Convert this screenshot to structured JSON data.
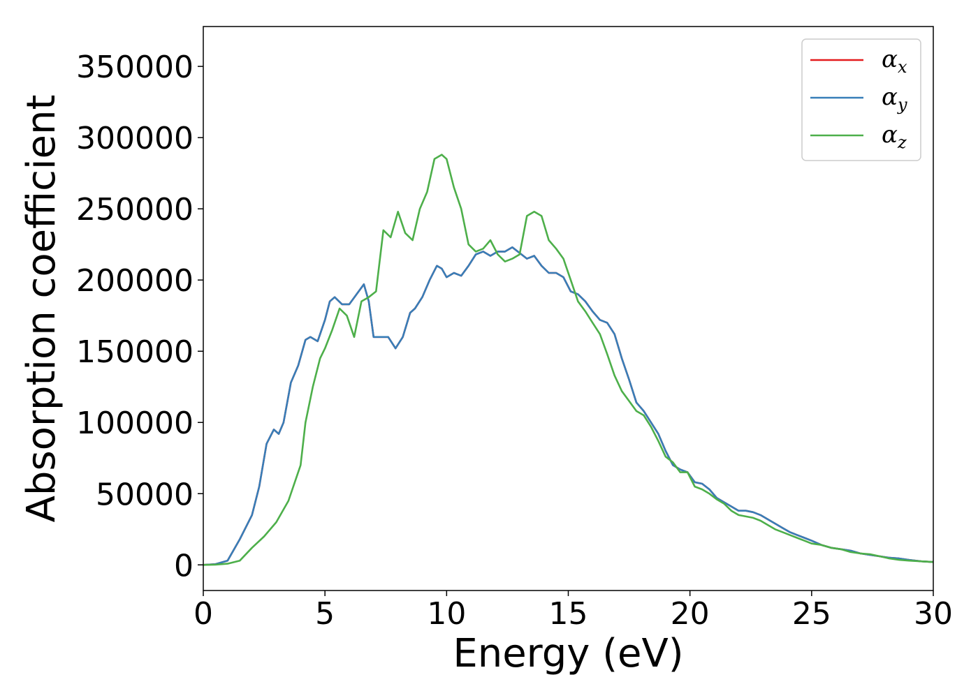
{
  "chart_data": {
    "type": "line",
    "title": "",
    "xlabel": "Energy (eV)",
    "ylabel": "Absorption coefficient",
    "xlim": [
      0,
      30
    ],
    "ylim": [
      -18000,
      378000
    ],
    "xticks": [
      0,
      5,
      10,
      15,
      20,
      25,
      30
    ],
    "yticks": [
      0,
      50000,
      100000,
      150000,
      200000,
      250000,
      300000,
      350000
    ],
    "grid": false,
    "legend_position": "top-right",
    "series": [
      {
        "name": "α",
        "subscript": "x",
        "color": "#e41a1c",
        "x": [
          0,
          0.5,
          1.0,
          1.5,
          2.0,
          2.3,
          2.6,
          2.9,
          3.1,
          3.3,
          3.6,
          3.9,
          4.2,
          4.4,
          4.7,
          5.0,
          5.2,
          5.4,
          5.7,
          6.0,
          6.3,
          6.6,
          6.8,
          7.0,
          7.3,
          7.6,
          7.9,
          8.2,
          8.5,
          8.7,
          9.0,
          9.3,
          9.6,
          9.8,
          10.0,
          10.3,
          10.6,
          10.9,
          11.2,
          11.5,
          11.8,
          12.1,
          12.4,
          12.7,
          13.0,
          13.3,
          13.6,
          13.9,
          14.2,
          14.5,
          14.8,
          15.1,
          15.4,
          15.7,
          16.0,
          16.3,
          16.6,
          16.9,
          17.2,
          17.5,
          17.8,
          18.1,
          18.4,
          18.7,
          19.0,
          19.3,
          19.6,
          19.9,
          20.2,
          20.5,
          20.8,
          21.1,
          21.4,
          21.7,
          22.0,
          22.3,
          22.6,
          22.9,
          23.2,
          23.5,
          23.8,
          24.1,
          24.4,
          24.7,
          25.0,
          25.4,
          25.8,
          26.2,
          26.6,
          27.0,
          27.4,
          27.8,
          28.2,
          28.6,
          29.0,
          29.5,
          30.0
        ],
        "y": [
          0,
          500,
          3000,
          18000,
          35000,
          55000,
          85000,
          95000,
          92000,
          100000,
          128000,
          140000,
          158000,
          160000,
          157000,
          172000,
          185000,
          188000,
          183000,
          183000,
          190000,
          197000,
          185000,
          160000,
          160000,
          160000,
          152000,
          160000,
          177000,
          180000,
          188000,
          200000,
          210000,
          208000,
          202000,
          205000,
          203000,
          210000,
          218000,
          220000,
          217000,
          220000,
          220000,
          223000,
          219000,
          215000,
          217000,
          210000,
          205000,
          205000,
          202000,
          192000,
          190000,
          185000,
          178000,
          172000,
          170000,
          162000,
          145000,
          130000,
          114000,
          108000,
          100000,
          92000,
          80000,
          70000,
          67000,
          65000,
          58000,
          57000,
          53000,
          47000,
          44000,
          41000,
          38000,
          38000,
          37000,
          35000,
          32000,
          29000,
          26000,
          23000,
          21000,
          19000,
          17000,
          14000,
          12000,
          11000,
          10000,
          8000,
          7000,
          6000,
          5000,
          4500,
          3500,
          2500,
          2000
        ]
      },
      {
        "name": "α",
        "subscript": "y",
        "color": "#377eb8",
        "x": [
          0,
          0.5,
          1.0,
          1.5,
          2.0,
          2.3,
          2.6,
          2.9,
          3.1,
          3.3,
          3.6,
          3.9,
          4.2,
          4.4,
          4.7,
          5.0,
          5.2,
          5.4,
          5.7,
          6.0,
          6.3,
          6.6,
          6.8,
          7.0,
          7.3,
          7.6,
          7.9,
          8.2,
          8.5,
          8.7,
          9.0,
          9.3,
          9.6,
          9.8,
          10.0,
          10.3,
          10.6,
          10.9,
          11.2,
          11.5,
          11.8,
          12.1,
          12.4,
          12.7,
          13.0,
          13.3,
          13.6,
          13.9,
          14.2,
          14.5,
          14.8,
          15.1,
          15.4,
          15.7,
          16.0,
          16.3,
          16.6,
          16.9,
          17.2,
          17.5,
          17.8,
          18.1,
          18.4,
          18.7,
          19.0,
          19.3,
          19.6,
          19.9,
          20.2,
          20.5,
          20.8,
          21.1,
          21.4,
          21.7,
          22.0,
          22.3,
          22.6,
          22.9,
          23.2,
          23.5,
          23.8,
          24.1,
          24.4,
          24.7,
          25.0,
          25.4,
          25.8,
          26.2,
          26.6,
          27.0,
          27.4,
          27.8,
          28.2,
          28.6,
          29.0,
          29.5,
          30.0
        ],
        "y": [
          0,
          500,
          3000,
          18000,
          35000,
          55000,
          85000,
          95000,
          92000,
          100000,
          128000,
          140000,
          158000,
          160000,
          157000,
          172000,
          185000,
          188000,
          183000,
          183000,
          190000,
          197000,
          185000,
          160000,
          160000,
          160000,
          152000,
          160000,
          177000,
          180000,
          188000,
          200000,
          210000,
          208000,
          202000,
          205000,
          203000,
          210000,
          218000,
          220000,
          217000,
          220000,
          220000,
          223000,
          219000,
          215000,
          217000,
          210000,
          205000,
          205000,
          202000,
          192000,
          190000,
          185000,
          178000,
          172000,
          170000,
          162000,
          145000,
          130000,
          114000,
          108000,
          100000,
          92000,
          80000,
          70000,
          67000,
          65000,
          58000,
          57000,
          53000,
          47000,
          44000,
          41000,
          38000,
          38000,
          37000,
          35000,
          32000,
          29000,
          26000,
          23000,
          21000,
          19000,
          17000,
          14000,
          12000,
          11000,
          10000,
          8000,
          7000,
          6000,
          5000,
          4500,
          3500,
          2500,
          2000
        ]
      },
      {
        "name": "α",
        "subscript": "z",
        "color": "#4daf4a",
        "x": [
          0,
          0.5,
          1.0,
          1.5,
          2.0,
          2.5,
          3.0,
          3.5,
          4.0,
          4.2,
          4.5,
          4.8,
          5.0,
          5.3,
          5.6,
          5.9,
          6.2,
          6.5,
          6.8,
          7.1,
          7.4,
          7.7,
          8.0,
          8.3,
          8.6,
          8.9,
          9.2,
          9.5,
          9.8,
          10.0,
          10.3,
          10.6,
          10.9,
          11.2,
          11.5,
          11.8,
          12.1,
          12.4,
          12.7,
          13.0,
          13.3,
          13.6,
          13.9,
          14.2,
          14.5,
          14.8,
          15.1,
          15.4,
          15.7,
          16.0,
          16.3,
          16.6,
          16.9,
          17.2,
          17.5,
          17.8,
          18.1,
          18.4,
          18.7,
          19.0,
          19.3,
          19.6,
          19.9,
          20.2,
          20.5,
          20.8,
          21.1,
          21.4,
          21.7,
          22.0,
          22.3,
          22.6,
          22.9,
          23.2,
          23.5,
          23.8,
          24.1,
          24.4,
          24.7,
          25.0,
          25.4,
          25.8,
          26.2,
          26.6,
          27.0,
          27.4,
          27.8,
          28.2,
          28.6,
          29.0,
          29.5,
          30.0
        ],
        "y": [
          0,
          200,
          800,
          3000,
          12000,
          20000,
          30000,
          45000,
          70000,
          100000,
          125000,
          145000,
          152000,
          165000,
          180000,
          175000,
          160000,
          185000,
          188000,
          192000,
          235000,
          230000,
          248000,
          233000,
          228000,
          250000,
          262000,
          285000,
          288000,
          285000,
          265000,
          250000,
          225000,
          220000,
          222000,
          228000,
          218000,
          213000,
          215000,
          218000,
          245000,
          248000,
          245000,
          228000,
          222000,
          215000,
          200000,
          185000,
          178000,
          170000,
          162000,
          148000,
          133000,
          122000,
          115000,
          108000,
          105000,
          97000,
          87000,
          76000,
          72000,
          65000,
          65000,
          55000,
          53000,
          50000,
          46000,
          43000,
          38000,
          35000,
          34000,
          33000,
          31000,
          28000,
          25000,
          23000,
          21000,
          19000,
          17000,
          15000,
          14000,
          12000,
          11000,
          9000,
          8000,
          7500,
          6000,
          4500,
          3500,
          3000,
          2500,
          2000
        ]
      }
    ]
  }
}
